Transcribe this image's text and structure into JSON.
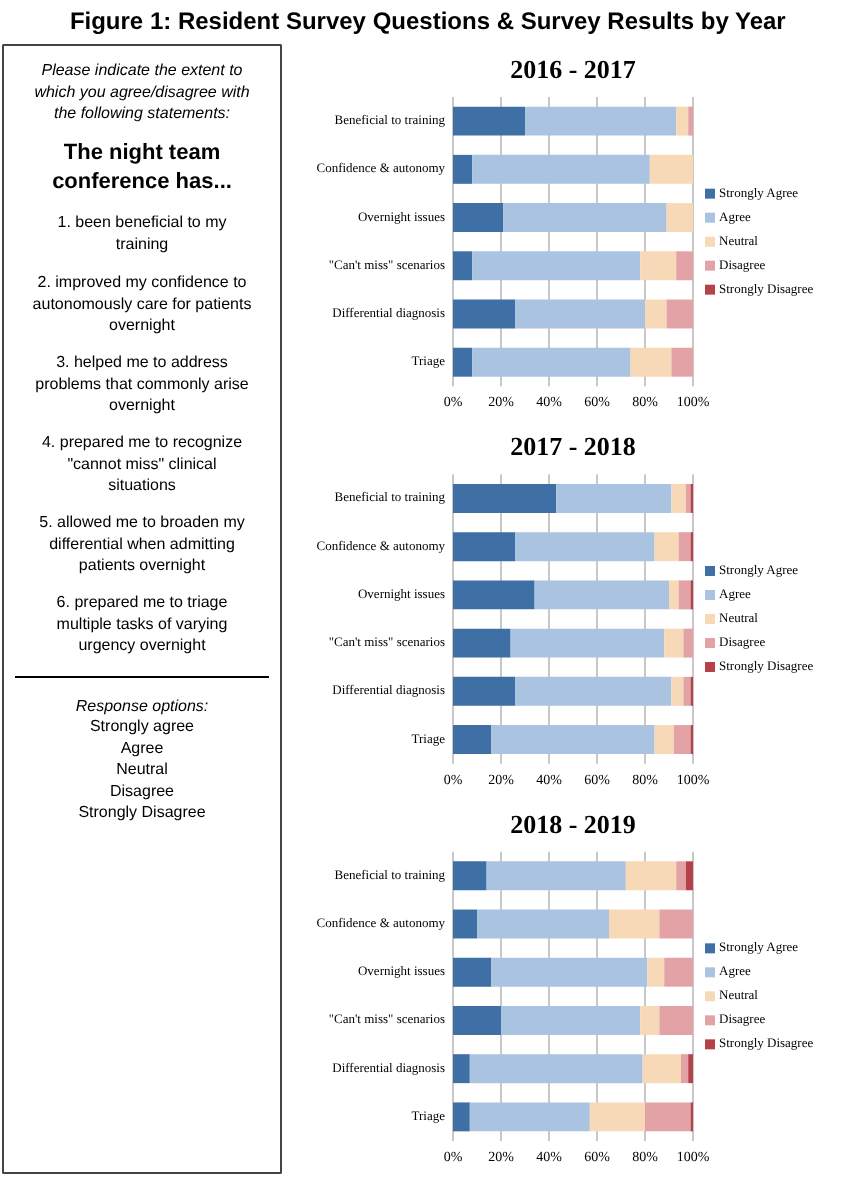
{
  "chart_data": [
    {
      "type": "other",
      "title": "Figure 1: Resident Survey Questions & Survey Results by Year",
      "annotations": [
        "Please indicate the extent to which you agree/disagree with the following statements:",
        "The night team conference has...",
        "1. been beneficial to my training",
        "2. improved my confidence to autonomously care for patients overnight",
        "3. helped me to address problems that commonly arise overnight",
        "4. prepared me to recognize \"cannot miss\" clinical situations",
        "5. allowed me to broaden my differential when admitting patients overnight",
        "6. prepared me to triage multiple tasks of varying urgency overnight",
        "Response options:\nStrongly agree\nAgree\nNeutral\nDisagree\nStrongly Disagree"
      ]
    },
    {
      "type": "bar",
      "title": "2016 - 2017",
      "orientation": "horizontal",
      "stacked": true,
      "grid": "x",
      "legend": "right",
      "categories": [
        "Beneficial to training",
        "Confidence & autonomy",
        "Overnight issues",
        "\"Can't miss\" scenarios",
        "Differential diagnosis",
        "Triage"
      ],
      "xlim": [
        0,
        100
      ],
      "xticks": [
        {
          "value": 0,
          "label": "0%"
        },
        {
          "value": 20,
          "label": "20%"
        },
        {
          "value": 40,
          "label": "40%"
        },
        {
          "value": 60,
          "label": "60%"
        },
        {
          "value": 80,
          "label": "80%"
        },
        {
          "value": 100,
          "label": "100%"
        }
      ],
      "series": [
        {
          "name": "Strongly Agree",
          "color": "#3e6fa5",
          "values": [
            30,
            8,
            21,
            8,
            26,
            8
          ]
        },
        {
          "name": "Agree",
          "color": "#a9c3e0",
          "values": [
            63,
            74,
            68,
            70,
            54,
            66
          ]
        },
        {
          "name": "Neutral",
          "color": "#f7d9b8",
          "values": [
            5,
            18,
            11,
            15,
            9,
            17
          ]
        },
        {
          "name": "Disagree",
          "color": "#e3a3a6",
          "values": [
            2,
            0,
            0,
            7,
            11,
            9
          ]
        },
        {
          "name": "Strongly Disagree",
          "color": "#b5424a",
          "values": [
            0,
            0,
            0,
            0,
            0,
            0
          ]
        }
      ]
    },
    {
      "type": "bar",
      "title": "2017 - 2018",
      "orientation": "horizontal",
      "stacked": true,
      "grid": "x",
      "legend": "right",
      "categories": [
        "Beneficial to training",
        "Confidence & autonomy",
        "Overnight issues",
        "\"Can't miss\" scenarios",
        "Differential diagnosis",
        "Triage"
      ],
      "xlim": [
        0,
        100
      ],
      "xticks": [
        {
          "value": 0,
          "label": "0%"
        },
        {
          "value": 20,
          "label": "20%"
        },
        {
          "value": 40,
          "label": "40%"
        },
        {
          "value": 60,
          "label": "60%"
        },
        {
          "value": 80,
          "label": "80%"
        },
        {
          "value": 100,
          "label": "100%"
        }
      ],
      "series": [
        {
          "name": "Strongly Agree",
          "color": "#3e6fa5",
          "values": [
            43,
            26,
            34,
            24,
            26,
            16
          ]
        },
        {
          "name": "Agree",
          "color": "#a9c3e0",
          "values": [
            48,
            58,
            56,
            64,
            65,
            68
          ]
        },
        {
          "name": "Neutral",
          "color": "#f7d9b8",
          "values": [
            6,
            10,
            4,
            8,
            5,
            8
          ]
        },
        {
          "name": "Disagree",
          "color": "#e3a3a6",
          "values": [
            2,
            5,
            5,
            4,
            3,
            7
          ]
        },
        {
          "name": "Strongly Disagree",
          "color": "#b5424a",
          "values": [
            1,
            1,
            1,
            0,
            1,
            1
          ]
        }
      ]
    },
    {
      "type": "bar",
      "title": "2018 - 2019",
      "orientation": "horizontal",
      "stacked": true,
      "grid": "x",
      "legend": "right",
      "categories": [
        "Beneficial to training",
        "Confidence & autonomy",
        "Overnight issues",
        "\"Can't miss\" scenarios",
        "Differential diagnosis",
        "Triage"
      ],
      "xlim": [
        0,
        100
      ],
      "xticks": [
        {
          "value": 0,
          "label": "0%"
        },
        {
          "value": 20,
          "label": "20%"
        },
        {
          "value": 40,
          "label": "40%"
        },
        {
          "value": 60,
          "label": "60%"
        },
        {
          "value": 80,
          "label": "80%"
        },
        {
          "value": 100,
          "label": "100%"
        }
      ],
      "series": [
        {
          "name": "Strongly Agree",
          "color": "#3e6fa5",
          "values": [
            14,
            10,
            16,
            20,
            7,
            7
          ]
        },
        {
          "name": "Agree",
          "color": "#a9c3e0",
          "values": [
            58,
            55,
            65,
            58,
            72,
            50
          ]
        },
        {
          "name": "Neutral",
          "color": "#f7d9b8",
          "values": [
            21,
            21,
            7,
            8,
            16,
            23
          ]
        },
        {
          "name": "Disagree",
          "color": "#e3a3a6",
          "values": [
            4,
            14,
            12,
            14,
            3,
            19
          ]
        },
        {
          "name": "Strongly Disagree",
          "color": "#b5424a",
          "values": [
            3,
            0,
            0,
            0,
            2,
            1
          ]
        }
      ]
    }
  ]
}
